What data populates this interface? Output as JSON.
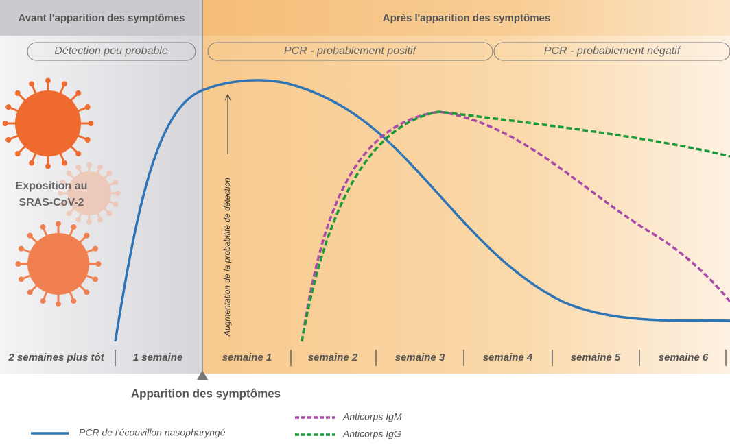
{
  "header": {
    "before": "Avant l'apparition des symptômes",
    "after": "Après l'apparition des symptômes"
  },
  "phases": [
    "Détection peu probable",
    "PCR - probablement positif",
    "PCR - probablement négatif"
  ],
  "exposure": [
    "Exposition au",
    "SRAS-CoV-2"
  ],
  "axis_label": "Augmentation de la probabilité de détection",
  "timeline": [
    "2 semaines plus tôt",
    "1 semaine",
    "semaine 1",
    "semaine 2",
    "semaine 3",
    "semaine 4",
    "semaine 5",
    "semaine 6"
  ],
  "onset": "Apparition des symptômes",
  "legend": [
    "PCR de l'écouvillon nasopharyngé",
    "Anticorps IgM",
    "Anticorps IgG"
  ]
}
